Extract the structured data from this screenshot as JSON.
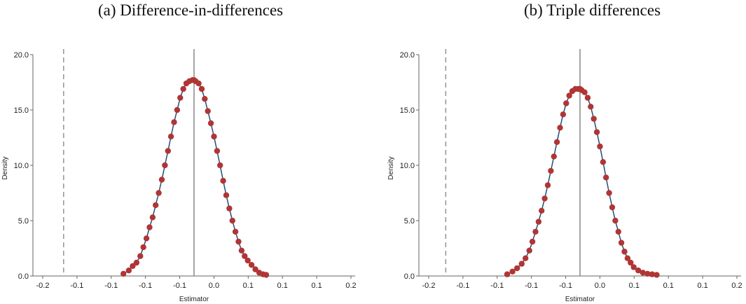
{
  "panels": [
    {
      "title": "(a) Difference-in-differences"
    },
    {
      "title": "(b) Triple differences"
    }
  ],
  "chart_data": [
    {
      "type": "scatter",
      "title": "(a) Difference-in-differences",
      "xlabel": "Estimator",
      "ylabel": "Density",
      "xlim": [
        -0.21,
        0.21
      ],
      "ylim": [
        0,
        20
      ],
      "xtick_labels": [
        "-0.2",
        "-0.1",
        "-0.1",
        "-0.1",
        "-0.1",
        "0.0",
        "0.1",
        "0.1",
        "0.1",
        "0.2"
      ],
      "ytick_labels": [
        "0.0",
        "5.0",
        "10.0",
        "15.0",
        "20.0"
      ],
      "reference_lines": {
        "dashed_x": -0.17,
        "solid_x": 0.0
      },
      "marker_color": "#b03535",
      "line_color": "#1f4f7a",
      "grid": false,
      "points": {
        "x": [
          -0.092,
          -0.085,
          -0.08,
          -0.075,
          -0.07,
          -0.066,
          -0.062,
          -0.058,
          -0.054,
          -0.05,
          -0.046,
          -0.042,
          -0.038,
          -0.034,
          -0.03,
          -0.026,
          -0.022,
          -0.018,
          -0.014,
          -0.01,
          -0.006,
          -0.002,
          0.0,
          0.002,
          0.006,
          0.01,
          0.014,
          0.018,
          0.022,
          0.026,
          0.03,
          0.034,
          0.038,
          0.042,
          0.046,
          0.05,
          0.054,
          0.058,
          0.062,
          0.066,
          0.07,
          0.075,
          0.08,
          0.085,
          0.09,
          0.094
        ],
        "y": [
          0.2,
          0.5,
          0.9,
          1.2,
          1.8,
          2.6,
          3.4,
          4.4,
          5.3,
          6.4,
          7.5,
          8.7,
          10.0,
          11.3,
          12.6,
          13.9,
          15.0,
          16.1,
          16.9,
          17.4,
          17.6,
          17.7,
          17.7,
          17.6,
          17.4,
          16.9,
          16.0,
          14.9,
          13.8,
          12.6,
          11.3,
          10.0,
          8.6,
          7.3,
          6.1,
          5.0,
          4.0,
          3.1,
          2.3,
          1.8,
          1.4,
          1.0,
          0.6,
          0.3,
          0.15,
          0.1
        ]
      }
    },
    {
      "type": "scatter",
      "title": "(b) Triple differences",
      "xlabel": "Estimator",
      "ylabel": "Density",
      "xlim": [
        -0.21,
        0.21
      ],
      "ylim": [
        0,
        20
      ],
      "xtick_labels": [
        "-0.2",
        "-0.1",
        "-0.1",
        "-0.1",
        "-0.1",
        "0.0",
        "0.1",
        "0.1",
        "0.1",
        "0.2"
      ],
      "ytick_labels": [
        "0.0",
        "5.0",
        "10.0",
        "15.0",
        "20.0"
      ],
      "reference_lines": {
        "dashed_x": -0.175,
        "solid_x": 0.0
      },
      "marker_color": "#b03535",
      "line_color": "#1f4f7a",
      "grid": false,
      "points": {
        "x": [
          -0.095,
          -0.088,
          -0.082,
          -0.076,
          -0.071,
          -0.066,
          -0.062,
          -0.058,
          -0.054,
          -0.05,
          -0.046,
          -0.042,
          -0.038,
          -0.034,
          -0.03,
          -0.026,
          -0.022,
          -0.018,
          -0.014,
          -0.01,
          -0.006,
          -0.002,
          0.0,
          0.002,
          0.006,
          0.01,
          0.014,
          0.018,
          0.022,
          0.026,
          0.03,
          0.034,
          0.038,
          0.042,
          0.046,
          0.05,
          0.054,
          0.058,
          0.062,
          0.066,
          0.07,
          0.076,
          0.082,
          0.088,
          0.094,
          0.1
        ],
        "y": [
          0.15,
          0.4,
          0.7,
          1.1,
          1.6,
          2.3,
          3.1,
          4.0,
          4.9,
          5.9,
          7.0,
          8.2,
          9.5,
          10.8,
          12.1,
          13.4,
          14.6,
          15.6,
          16.3,
          16.7,
          16.9,
          16.9,
          16.9,
          16.8,
          16.6,
          16.1,
          15.3,
          14.2,
          13.0,
          11.7,
          10.3,
          8.9,
          7.5,
          6.2,
          5.0,
          4.0,
          3.0,
          2.2,
          1.6,
          1.2,
          0.8,
          0.5,
          0.3,
          0.2,
          0.15,
          0.1
        ]
      }
    }
  ]
}
